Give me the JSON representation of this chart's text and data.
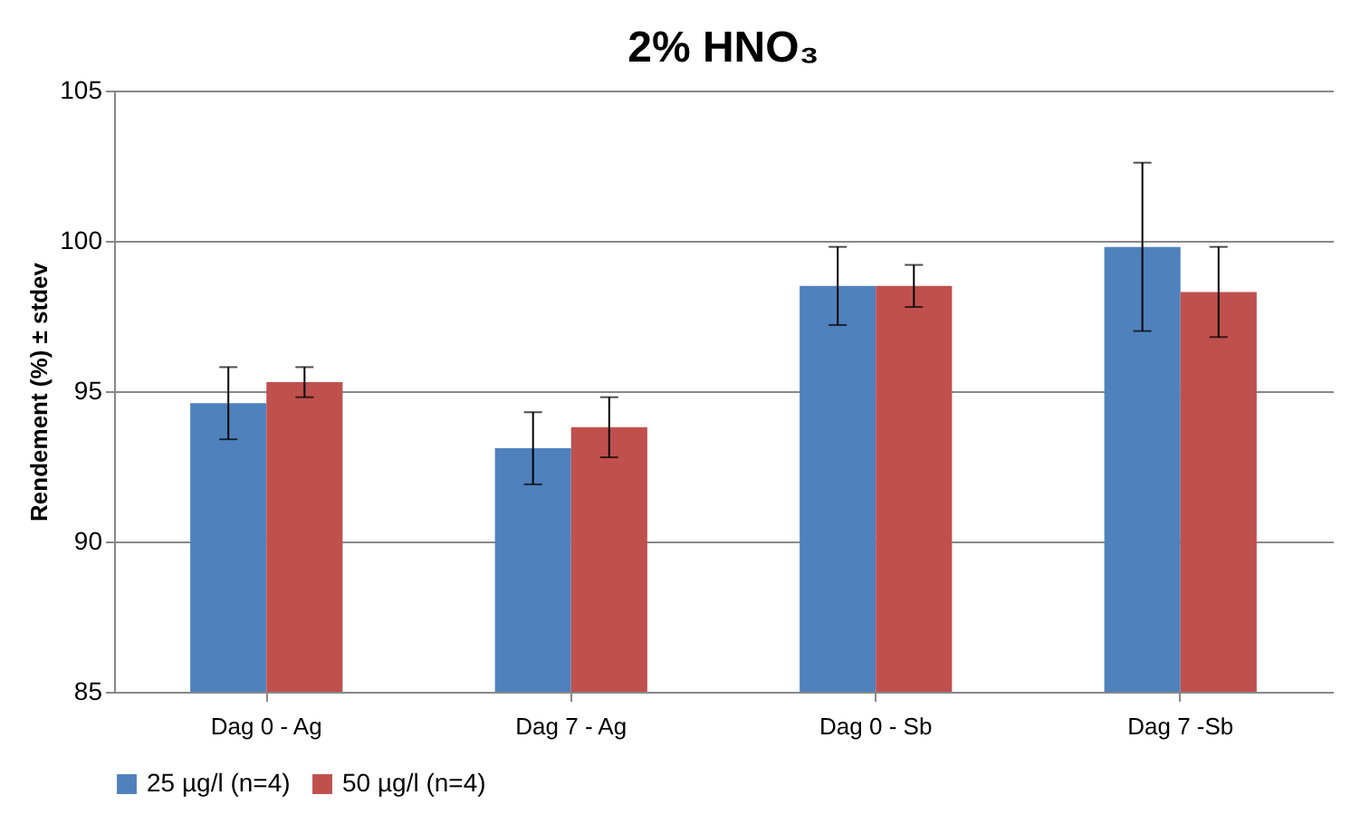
{
  "chart_data": {
    "type": "bar",
    "title": "2% HNO₃",
    "ylabel": "Rendement (%) ± stdev",
    "categories": [
      "Dag 0 - Ag",
      "Dag 7 - Ag",
      "Dag 0 - Sb",
      "Dag 7 -Sb"
    ],
    "series": [
      {
        "name": "25 µg/l (n=4)",
        "color": "#4f81bd",
        "values": [
          94.6,
          93.1,
          98.5,
          99.8
        ],
        "errors": [
          1.2,
          1.2,
          1.3,
          2.8
        ]
      },
      {
        "name": "50 µg/l (n=4)",
        "color": "#c0504d",
        "values": [
          95.3,
          93.8,
          98.5,
          98.3
        ],
        "errors": [
          0.5,
          1.0,
          0.7,
          1.5
        ]
      }
    ],
    "ylim": [
      85,
      105
    ],
    "yticks": [
      85,
      90,
      95,
      100,
      105
    ],
    "grid": "y",
    "legend": "bottom"
  }
}
